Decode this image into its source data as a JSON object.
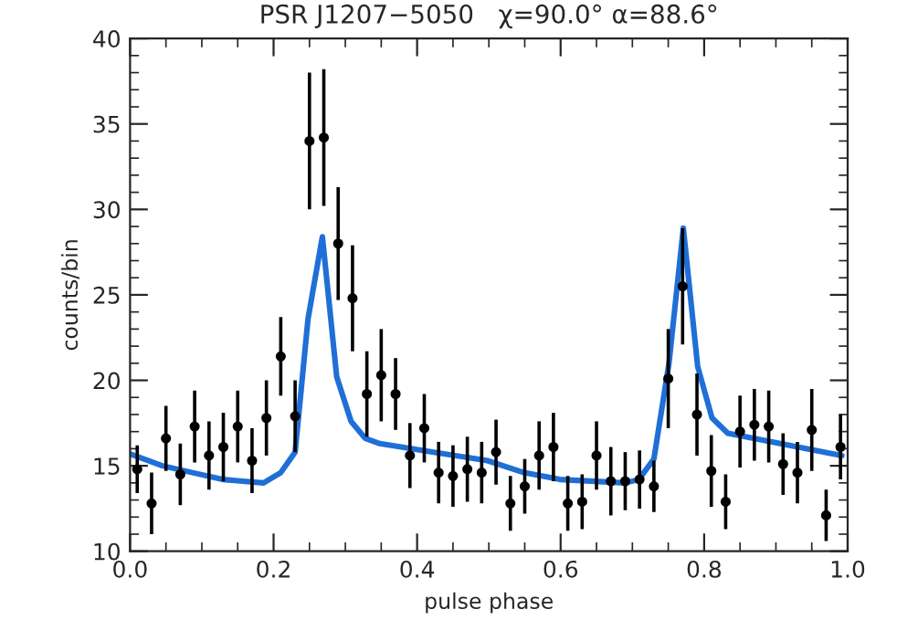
{
  "chart_data": {
    "type": "scatter",
    "title": "PSR J1207−5050   χ=90.0° α=88.6°",
    "xlabel": "pulse phase",
    "ylabel": "counts/bin",
    "xlim": [
      0,
      1
    ],
    "ylim": [
      10,
      40
    ],
    "xticks": [
      {
        "value": 0,
        "label": "0.0"
      },
      {
        "value": 0.2,
        "label": "0.2"
      },
      {
        "value": 0.4,
        "label": "0.4"
      },
      {
        "value": 0.6,
        "label": "0.6"
      },
      {
        "value": 0.8,
        "label": "0.8"
      },
      {
        "value": 1,
        "label": "1.0"
      }
    ],
    "yticks": [
      10,
      15,
      20,
      25,
      30,
      35,
      40
    ],
    "grid": false,
    "legend": false,
    "series": [
      {
        "color": "#000000",
        "marker": "circle",
        "x": [
          0.01,
          0.03,
          0.05,
          0.07,
          0.09,
          0.11,
          0.13,
          0.15,
          0.17,
          0.19,
          0.21,
          0.23,
          0.25,
          0.27,
          0.29,
          0.31,
          0.33,
          0.35,
          0.37,
          0.39,
          0.41,
          0.43,
          0.45,
          0.47,
          0.49,
          0.51,
          0.53,
          0.55,
          0.57,
          0.59,
          0.61,
          0.63,
          0.65,
          0.67,
          0.69,
          0.71,
          0.73,
          0.75,
          0.77,
          0.79,
          0.81,
          0.83,
          0.85,
          0.87,
          0.89,
          0.91,
          0.93,
          0.95,
          0.97,
          0.99
        ],
        "values": [
          14.8,
          12.8,
          16.6,
          14.5,
          17.3,
          15.6,
          16.1,
          17.3,
          15.3,
          17.8,
          21.4,
          17.9,
          34.0,
          34.2,
          28.0,
          24.8,
          19.2,
          20.3,
          19.2,
          15.6,
          17.2,
          14.6,
          14.4,
          14.8,
          14.6,
          15.8,
          12.8,
          13.8,
          15.6,
          16.1,
          12.8,
          12.9,
          15.6,
          14.1,
          14.1,
          14.2,
          13.8,
          20.1,
          25.5,
          18.0,
          14.7,
          12.9,
          17.0,
          17.4,
          17.3,
          15.1,
          14.6,
          17.1,
          12.1,
          16.1
        ],
        "errors": [
          1.4,
          1.8,
          1.9,
          1.8,
          2.1,
          2.0,
          2.0,
          2.1,
          1.9,
          2.2,
          2.3,
          2.1,
          4.0,
          4.0,
          3.3,
          3.1,
          2.5,
          2.7,
          2.1,
          1.9,
          2.0,
          1.8,
          1.8,
          1.9,
          1.8,
          1.9,
          1.6,
          1.6,
          2.0,
          2.0,
          1.6,
          1.6,
          2.0,
          2.0,
          1.7,
          1.7,
          1.5,
          2.9,
          3.4,
          2.4,
          2.1,
          1.6,
          2.1,
          2.1,
          2.1,
          1.8,
          1.8,
          2.4,
          1.5,
          1.9
        ]
      },
      {
        "type": "line",
        "color": "#1f6fd6",
        "marker": "none",
        "line_style": "solid",
        "x": [
          0.0,
          0.045,
          0.087,
          0.129,
          0.186,
          0.21,
          0.23,
          0.248,
          0.268,
          0.288,
          0.308,
          0.328,
          0.348,
          0.423,
          0.498,
          0.549,
          0.599,
          0.69,
          0.709,
          0.73,
          0.751,
          0.771,
          0.791,
          0.811,
          0.833,
          0.992
        ],
        "values": [
          15.7,
          15.0,
          14.6,
          14.2,
          14.0,
          14.6,
          15.8,
          23.6,
          28.4,
          20.2,
          17.6,
          16.6,
          16.3,
          15.8,
          15.3,
          14.6,
          14.2,
          14.0,
          14.2,
          15.4,
          21.0,
          28.9,
          20.8,
          17.8,
          16.9,
          15.6
        ]
      }
    ]
  }
}
